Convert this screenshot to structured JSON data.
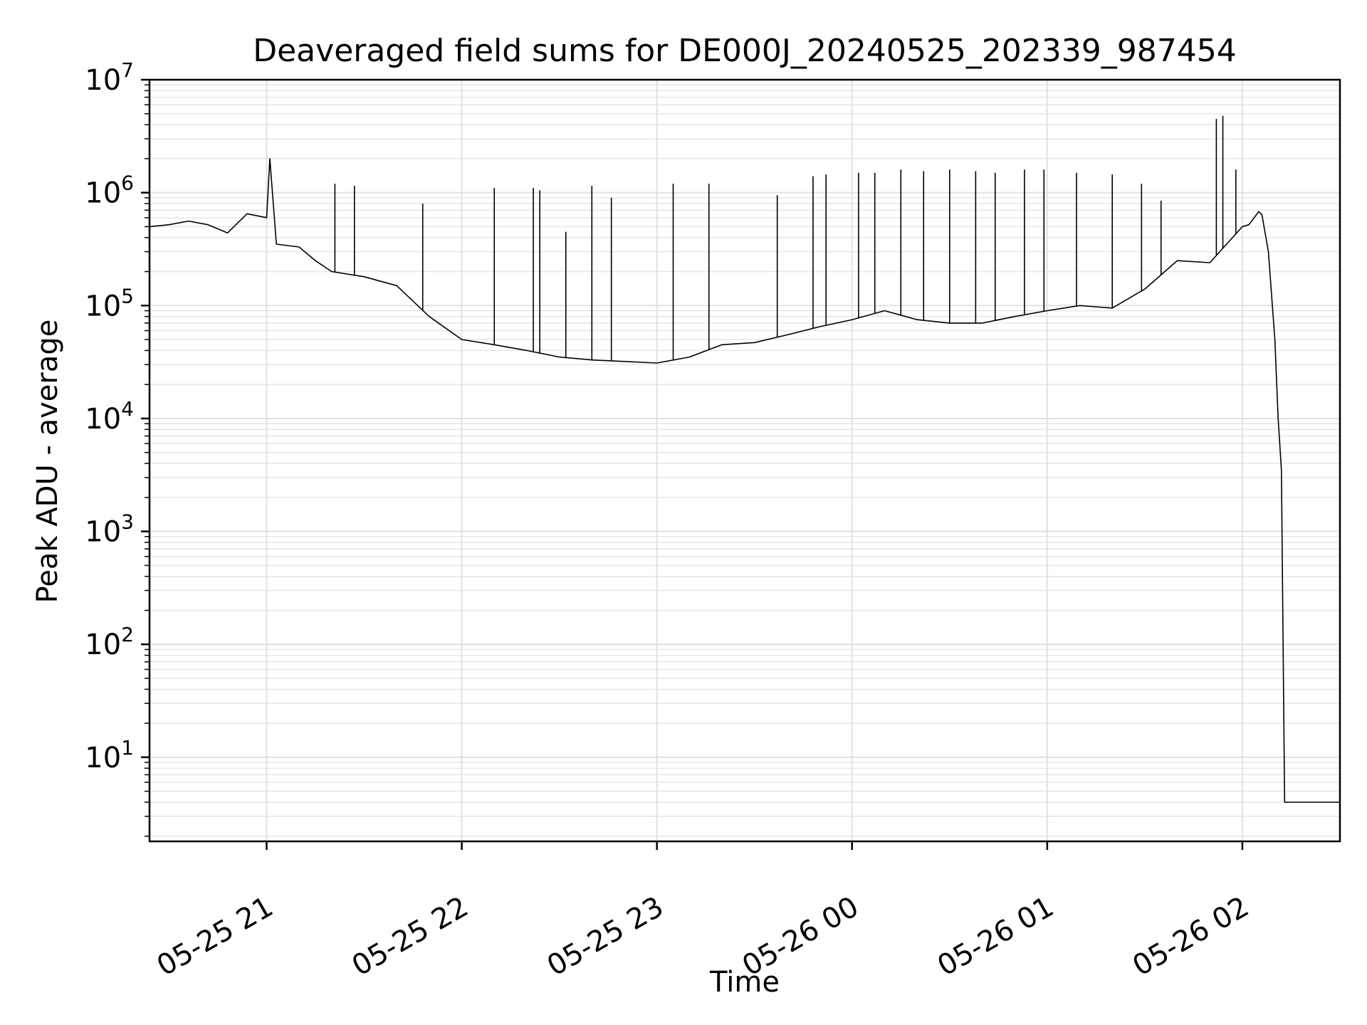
{
  "chart_data": {
    "type": "line",
    "title": "Deaveraged field sums for DE000J_20240525_202339_987454",
    "xlabel": "Time",
    "ylabel": "Peak ADU - average",
    "yscale": "log",
    "ylim": [
      1.8,
      10000000
    ],
    "xlim": [
      "2024-05-25 20:24",
      "2024-05-26 02:30"
    ],
    "grid": true,
    "line_color": "#000000",
    "x_ticks": [
      {
        "value": "2024-05-25 21:00",
        "label": "05-25 21"
      },
      {
        "value": "2024-05-25 22:00",
        "label": "05-25 22"
      },
      {
        "value": "2024-05-25 23:00",
        "label": "05-25 23"
      },
      {
        "value": "2024-05-26 00:00",
        "label": "05-26 00"
      },
      {
        "value": "2024-05-26 01:00",
        "label": "05-26 01"
      },
      {
        "value": "2024-05-26 02:00",
        "label": "05-26 02"
      }
    ],
    "y_ticks": [
      {
        "value": 10,
        "base": "10",
        "exp": "1"
      },
      {
        "value": 100,
        "base": "10",
        "exp": "2"
      },
      {
        "value": 1000,
        "base": "10",
        "exp": "3"
      },
      {
        "value": 10000,
        "base": "10",
        "exp": "4"
      },
      {
        "value": 100000,
        "base": "10",
        "exp": "5"
      },
      {
        "value": 1000000,
        "base": "10",
        "exp": "6"
      },
      {
        "value": 10000000,
        "base": "10",
        "exp": "7"
      }
    ],
    "series": [
      {
        "points": [
          [
            "2024-05-25 20:24",
            500000
          ],
          [
            "2024-05-25 20:30",
            520000
          ],
          [
            "2024-05-25 20:36",
            560000
          ],
          [
            "2024-05-25 20:42",
            520000
          ],
          [
            "2024-05-25 20:48",
            440000
          ],
          [
            "2024-05-25 20:54",
            650000
          ],
          [
            "2024-05-25 21:00",
            600000
          ],
          [
            "2024-05-25 21:01",
            2000000
          ],
          [
            "2024-05-25 21:03",
            350000
          ],
          [
            "2024-05-25 21:10",
            330000
          ],
          [
            "2024-05-25 21:15",
            250000
          ],
          [
            "2024-05-25 21:20",
            200000
          ],
          [
            "2024-05-25 21:30",
            180000
          ],
          [
            "2024-05-25 21:40",
            150000
          ],
          [
            "2024-05-25 21:50",
            80000
          ],
          [
            "2024-05-25 22:00",
            50000
          ],
          [
            "2024-05-25 22:10",
            45000
          ],
          [
            "2024-05-25 22:20",
            40000
          ],
          [
            "2024-05-25 22:30",
            35000
          ],
          [
            "2024-05-25 22:40",
            33000
          ],
          [
            "2024-05-25 22:50",
            32000
          ],
          [
            "2024-05-25 23:00",
            31000
          ],
          [
            "2024-05-25 23:10",
            35000
          ],
          [
            "2024-05-25 23:20",
            45000
          ],
          [
            "2024-05-25 23:30",
            47000
          ],
          [
            "2024-05-25 23:40",
            55000
          ],
          [
            "2024-05-25 23:50",
            65000
          ],
          [
            "2024-05-26 00:00",
            75000
          ],
          [
            "2024-05-26 00:10",
            90000
          ],
          [
            "2024-05-26 00:20",
            75000
          ],
          [
            "2024-05-26 00:30",
            70000
          ],
          [
            "2024-05-26 00:40",
            70000
          ],
          [
            "2024-05-26 00:50",
            80000
          ],
          [
            "2024-05-26 01:00",
            90000
          ],
          [
            "2024-05-26 01:10",
            100000
          ],
          [
            "2024-05-26 01:20",
            95000
          ],
          [
            "2024-05-26 01:30",
            140000
          ],
          [
            "2024-05-26 01:40",
            250000
          ],
          [
            "2024-05-26 01:50",
            240000
          ],
          [
            "2024-05-26 02:00",
            500000
          ],
          [
            "2024-05-26 02:02",
            520000
          ],
          [
            "2024-05-26 02:04",
            620000
          ],
          [
            "2024-05-26 02:05",
            680000
          ],
          [
            "2024-05-26 02:06",
            640000
          ],
          [
            "2024-05-26 02:08",
            300000
          ],
          [
            "2024-05-26 02:10",
            50000
          ],
          [
            "2024-05-26 02:11",
            10000
          ],
          [
            "2024-05-26 02:12",
            3500
          ],
          [
            "2024-05-26 02:13",
            4
          ],
          [
            "2024-05-26 02:30",
            4
          ]
        ],
        "spikes": [
          [
            "2024-05-25 21:01",
            2000000
          ],
          [
            "2024-05-25 21:21",
            1200000
          ],
          [
            "2024-05-25 21:27",
            1150000
          ],
          [
            "2024-05-25 21:48",
            800000
          ],
          [
            "2024-05-25 22:10",
            1100000
          ],
          [
            "2024-05-25 22:22",
            1100000
          ],
          [
            "2024-05-25 22:24",
            1050000
          ],
          [
            "2024-05-25 22:32",
            450000
          ],
          [
            "2024-05-25 22:40",
            1150000
          ],
          [
            "2024-05-25 22:46",
            900000
          ],
          [
            "2024-05-25 23:05",
            1200000
          ],
          [
            "2024-05-25 23:16",
            1200000
          ],
          [
            "2024-05-25 23:37",
            950000
          ],
          [
            "2024-05-25 23:48",
            1400000
          ],
          [
            "2024-05-25 23:52",
            1450000
          ],
          [
            "2024-05-26 00:02",
            1500000
          ],
          [
            "2024-05-26 00:07",
            1500000
          ],
          [
            "2024-05-26 00:15",
            1600000
          ],
          [
            "2024-05-26 00:22",
            1550000
          ],
          [
            "2024-05-26 00:30",
            1600000
          ],
          [
            "2024-05-26 00:38",
            1550000
          ],
          [
            "2024-05-26 00:44",
            1500000
          ],
          [
            "2024-05-26 00:53",
            1600000
          ],
          [
            "2024-05-26 00:59",
            1600000
          ],
          [
            "2024-05-26 01:09",
            1500000
          ],
          [
            "2024-05-26 01:20",
            1450000
          ],
          [
            "2024-05-26 01:29",
            1200000
          ],
          [
            "2024-05-26 01:35",
            850000
          ],
          [
            "2024-05-26 01:52",
            4500000
          ],
          [
            "2024-05-26 01:54",
            4800000
          ],
          [
            "2024-05-26 01:58",
            1600000
          ]
        ]
      }
    ]
  }
}
